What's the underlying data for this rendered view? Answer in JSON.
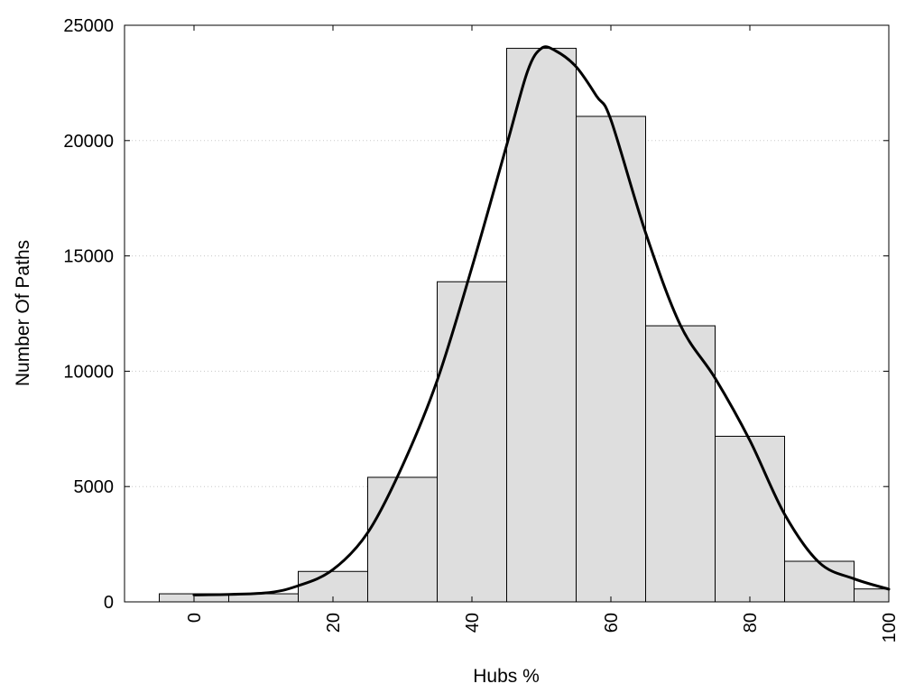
{
  "chart_data": {
    "type": "bar",
    "title": "",
    "xlabel": "Hubs %",
    "ylabel": "Number Of Paths",
    "xlim": [
      -10,
      100
    ],
    "ylim": [
      0,
      25000
    ],
    "x_ticks": [
      "0",
      "20",
      "40",
      "60",
      "80",
      "100"
    ],
    "y_ticks": [
      "0",
      "5000",
      "10000",
      "15000",
      "20000",
      "25000"
    ],
    "grid": "horizontal dotted",
    "bin_width": 10,
    "bins": [
      {
        "center": 0,
        "value": 350
      },
      {
        "center": 10,
        "value": 350
      },
      {
        "center": 20,
        "value": 1320
      },
      {
        "center": 30,
        "value": 5400
      },
      {
        "center": 40,
        "value": 13880
      },
      {
        "center": 50,
        "value": 24000
      },
      {
        "center": 60,
        "value": 21050
      },
      {
        "center": 70,
        "value": 11970
      },
      {
        "center": 80,
        "value": 7180
      },
      {
        "center": 90,
        "value": 1760
      },
      {
        "center": 100,
        "value": 560
      }
    ],
    "density_curve": {
      "x": [
        0,
        10,
        15,
        20,
        25,
        30,
        35,
        40,
        45,
        48,
        50,
        52,
        55,
        58,
        60,
        65,
        70,
        75,
        80,
        85,
        90,
        95,
        100
      ],
      "y": [
        300,
        380,
        700,
        1400,
        3000,
        5900,
        9600,
        14500,
        19800,
        23000,
        24000,
        23900,
        23200,
        21900,
        20900,
        16000,
        12000,
        9700,
        7000,
        3800,
        1700,
        1000,
        550
      ]
    },
    "colors": {
      "bar_fill": "#dedede",
      "bar_stroke": "#000000",
      "curve": "#000000"
    }
  }
}
